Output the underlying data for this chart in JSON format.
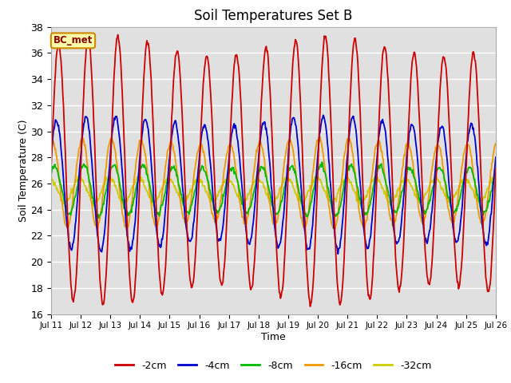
{
  "title": "Soil Temperatures Set B",
  "xlabel": "Time",
  "ylabel": "Soil Temperature (C)",
  "ylim": [
    16,
    38
  ],
  "yticks": [
    16,
    18,
    20,
    22,
    24,
    26,
    28,
    30,
    32,
    34,
    36,
    38
  ],
  "annotation": "BC_met",
  "legend_labels": [
    "-2cm",
    "-4cm",
    "-8cm",
    "-16cm",
    "-32cm"
  ],
  "line_colors": [
    "#cc0000",
    "#0000cc",
    "#00bb00",
    "#ee9900",
    "#cccc00"
  ],
  "background_color": "#e0e0e0",
  "x_tick_labels": [
    "Jul 11",
    "Jul 12",
    "Jul 13",
    "Jul 14",
    "Jul 15",
    "Jul 16",
    "Jul 17",
    "Jul 18",
    "Jul 19",
    "Jul 20",
    "Jul 21",
    "Jul 22",
    "Jul 23",
    "Jul 24",
    "Jul 25",
    "Jul 26"
  ],
  "n_days": 15,
  "pts_per_day": 48,
  "depth_params": [
    {
      "mean": 27.0,
      "amp": 9.5,
      "phase": 0.0,
      "amp_drift": 0.0,
      "mean_drift": 0.0
    },
    {
      "mean": 26.0,
      "amp": 4.8,
      "phase": 0.45,
      "amp_drift": 0.0,
      "mean_drift": 0.0
    },
    {
      "mean": 25.5,
      "amp": 1.8,
      "phase": 0.9,
      "amp_drift": 0.0,
      "mean_drift": 0.0
    },
    {
      "mean": 26.0,
      "amp": 3.2,
      "phase": 1.3,
      "amp_drift": 0.0,
      "mean_drift": 0.0
    },
    {
      "mean": 25.5,
      "amp": 0.9,
      "phase": 1.8,
      "amp_drift": 0.0,
      "mean_drift": 0.0
    }
  ]
}
